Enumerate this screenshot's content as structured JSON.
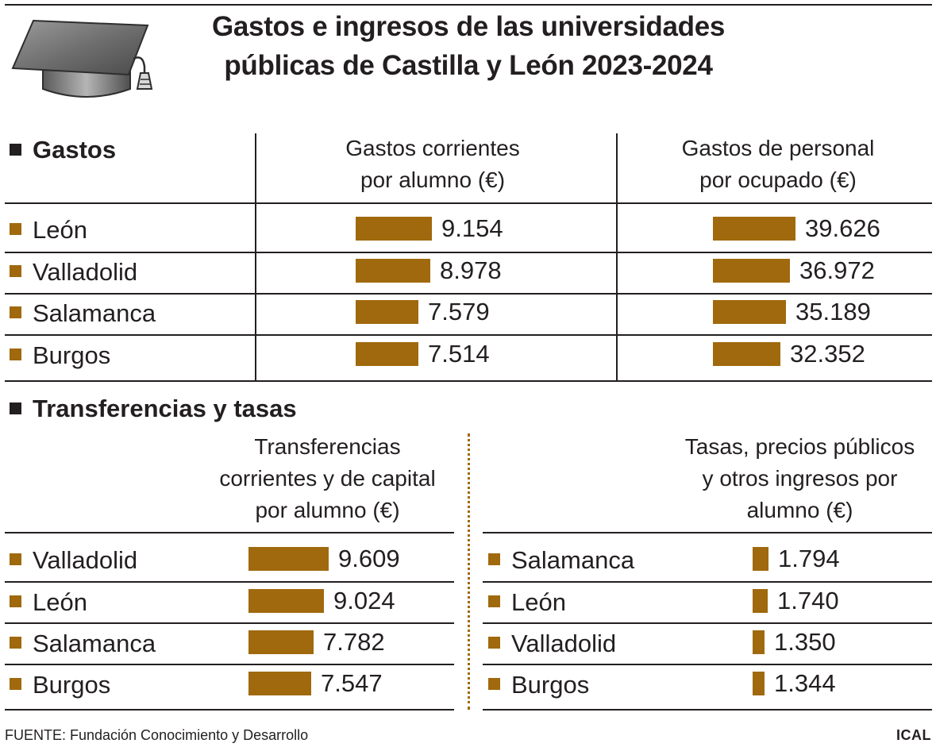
{
  "header": {
    "title_line1": "Gastos e ingresos de las universidades",
    "title_line2": "públicas de Castilla y León 2023-2024"
  },
  "chart_data": [
    {
      "type": "bar",
      "section": "Gastos",
      "title": "Gastos corrientes por alumno (€)",
      "title_line1": "Gastos corrientes",
      "title_line2": "por alumno (€)",
      "categories": [
        "León",
        "Valladolid",
        "Salamanca",
        "Burgos"
      ],
      "values": [
        9154,
        8978,
        7579,
        7514
      ],
      "labels": [
        "9.154",
        "8.978",
        "7.579",
        "7.514"
      ],
      "color": "#a0690d"
    },
    {
      "type": "bar",
      "section": "Gastos",
      "title": "Gastos de personal por ocupado (€)",
      "title_line1": "Gastos de personal",
      "title_line2": "por ocupado (€)",
      "categories": [
        "León",
        "Valladolid",
        "Salamanca",
        "Burgos"
      ],
      "values": [
        39626,
        36972,
        35189,
        32352
      ],
      "labels": [
        "39.626",
        "36.972",
        "35.189",
        "32.352"
      ],
      "color": "#a0690d"
    },
    {
      "type": "bar",
      "section": "Transferencias y tasas",
      "title": "Transferencias corrientes y de capital por alumno (€)",
      "title_line1": "Transferencias",
      "title_line2": "corrientes y de capital",
      "title_line3": "por alumno (€)",
      "categories": [
        "Valladolid",
        "León",
        "Salamanca",
        "Burgos"
      ],
      "values": [
        9609,
        9024,
        7782,
        7547
      ],
      "labels": [
        "9.609",
        "9.024",
        "7.782",
        "7.547"
      ],
      "color": "#a0690d"
    },
    {
      "type": "bar",
      "section": "Transferencias y tasas",
      "title": "Tasas, precios públicos y otros ingresos por alumno (€)",
      "title_line1": "Tasas, precios públicos",
      "title_line2": "y otros ingresos por",
      "title_line3": "alumno (€)",
      "categories": [
        "Salamanca",
        "León",
        "Valladolid",
        "Burgos"
      ],
      "values": [
        1794,
        1740,
        1350,
        1344
      ],
      "labels": [
        "1.794",
        "1.740",
        "1.350",
        "1.344"
      ],
      "color": "#a0690d"
    }
  ],
  "sections": {
    "gastos": "Gastos",
    "transferencias": "Transferencias y tasas"
  },
  "footer": {
    "source": "FUENTE: Fundación Conocimiento y Desarrollo",
    "credit": "ICAL"
  }
}
